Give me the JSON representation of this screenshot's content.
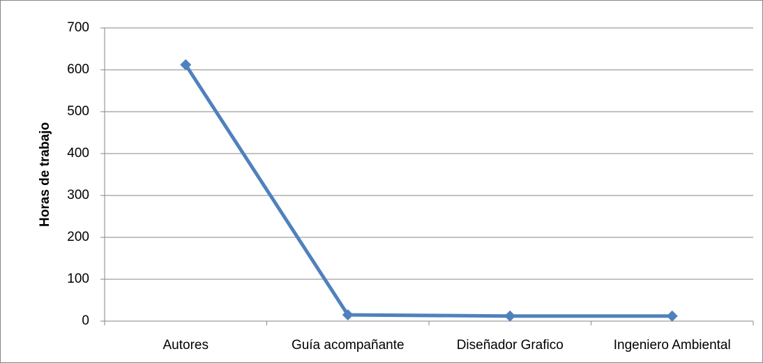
{
  "chart_data": {
    "type": "line",
    "y_label": "Horas de trabajo",
    "categories": [
      "Autores",
      "Guía acompañante",
      "Diseñador Grafico",
      "Ingeniero Ambiental"
    ],
    "series": [
      {
        "name": "Horas",
        "color": "#4f81bd",
        "values": [
          612,
          15,
          12,
          12
        ]
      }
    ],
    "ylim": [
      0,
      700
    ],
    "yticks": [
      0,
      100,
      200,
      300,
      400,
      500,
      600,
      700
    ],
    "grid": true
  }
}
